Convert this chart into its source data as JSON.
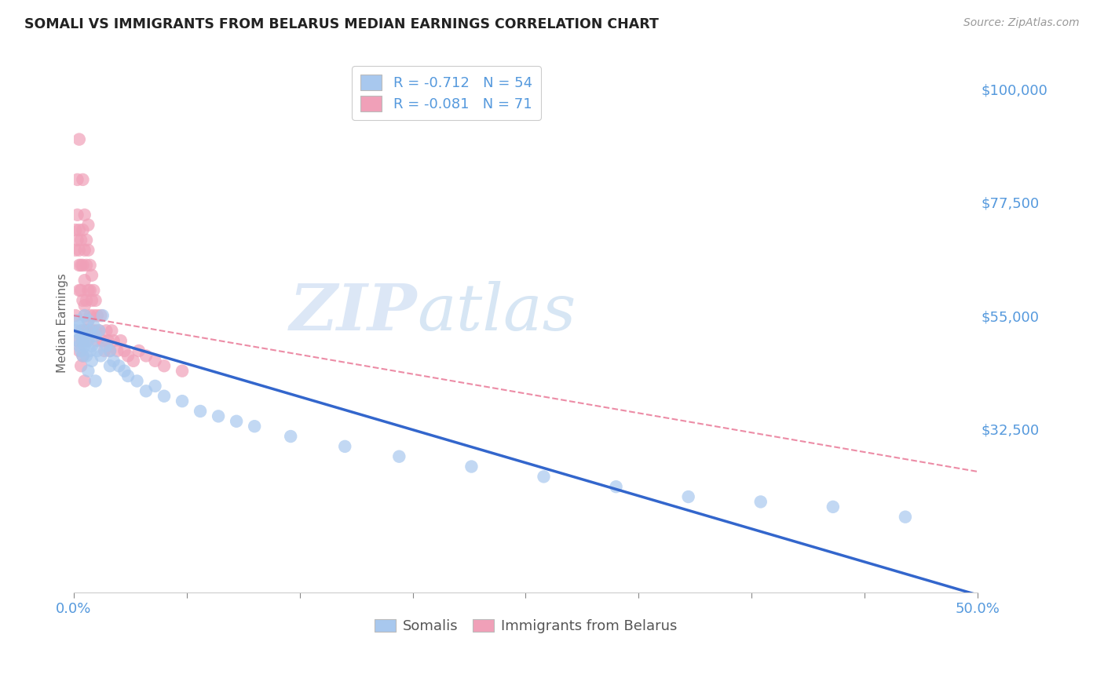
{
  "title": "SOMALI VS IMMIGRANTS FROM BELARUS MEDIAN EARNINGS CORRELATION CHART",
  "source": "Source: ZipAtlas.com",
  "ylabel": "Median Earnings",
  "yticks_labels": [
    "$100,000",
    "$77,500",
    "$55,000",
    "$32,500"
  ],
  "yticks_values": [
    100000,
    77500,
    55000,
    32500
  ],
  "ymin": 0,
  "ymax": 107000,
  "xmin": 0.0,
  "xmax": 0.5,
  "watermark_zip": "ZIP",
  "watermark_atlas": "atlas",
  "legend_blue_r": "-0.712",
  "legend_blue_n": "54",
  "legend_pink_r": "-0.081",
  "legend_pink_n": "71",
  "legend_label_blue": "Somalis",
  "legend_label_pink": "Immigrants from Belarus",
  "blue_color": "#A8C8EE",
  "pink_color": "#F0A0B8",
  "blue_line_color": "#3366CC",
  "pink_line_color": "#E87090",
  "background_color": "#FFFFFF",
  "grid_color": "#DDDDDD",
  "title_color": "#222222",
  "axis_tick_color": "#888888",
  "right_tick_color": "#5599DD",
  "source_color": "#999999",
  "somali_x": [
    0.001,
    0.002,
    0.002,
    0.003,
    0.003,
    0.004,
    0.004,
    0.005,
    0.005,
    0.006,
    0.006,
    0.007,
    0.007,
    0.008,
    0.008,
    0.009,
    0.009,
    0.01,
    0.01,
    0.011,
    0.012,
    0.013,
    0.014,
    0.015,
    0.016,
    0.018,
    0.02,
    0.022,
    0.025,
    0.028,
    0.03,
    0.035,
    0.04,
    0.045,
    0.05,
    0.06,
    0.07,
    0.08,
    0.09,
    0.1,
    0.12,
    0.15,
    0.18,
    0.22,
    0.26,
    0.3,
    0.34,
    0.38,
    0.42,
    0.46,
    0.005,
    0.008,
    0.012,
    0.02
  ],
  "somali_y": [
    52000,
    50000,
    54000,
    49000,
    53000,
    51000,
    48000,
    52000,
    50000,
    49000,
    55000,
    51000,
    47000,
    50000,
    54000,
    48000,
    52000,
    49000,
    46000,
    53000,
    51000,
    48000,
    52000,
    47000,
    55000,
    49000,
    48000,
    46000,
    45000,
    44000,
    43000,
    42000,
    40000,
    41000,
    39000,
    38000,
    36000,
    35000,
    34000,
    33000,
    31000,
    29000,
    27000,
    25000,
    23000,
    21000,
    19000,
    18000,
    17000,
    15000,
    47000,
    44000,
    42000,
    45000
  ],
  "belarus_x": [
    0.001,
    0.001,
    0.002,
    0.002,
    0.002,
    0.003,
    0.003,
    0.003,
    0.003,
    0.004,
    0.004,
    0.004,
    0.005,
    0.005,
    0.005,
    0.005,
    0.006,
    0.006,
    0.006,
    0.006,
    0.006,
    0.007,
    0.007,
    0.007,
    0.007,
    0.008,
    0.008,
    0.008,
    0.008,
    0.009,
    0.009,
    0.009,
    0.01,
    0.01,
    0.01,
    0.011,
    0.011,
    0.012,
    0.012,
    0.013,
    0.013,
    0.014,
    0.015,
    0.016,
    0.017,
    0.018,
    0.019,
    0.02,
    0.021,
    0.022,
    0.024,
    0.026,
    0.028,
    0.03,
    0.033,
    0.036,
    0.04,
    0.045,
    0.05,
    0.06,
    0.001,
    0.002,
    0.003,
    0.004,
    0.005,
    0.006,
    0.007,
    0.003,
    0.004,
    0.005,
    0.006
  ],
  "belarus_y": [
    72000,
    68000,
    82000,
    75000,
    70000,
    65000,
    72000,
    68000,
    60000,
    70000,
    65000,
    60000,
    82000,
    72000,
    65000,
    58000,
    75000,
    68000,
    62000,
    57000,
    52000,
    70000,
    65000,
    58000,
    52000,
    73000,
    68000,
    60000,
    54000,
    65000,
    60000,
    55000,
    63000,
    58000,
    52000,
    60000,
    55000,
    58000,
    52000,
    55000,
    50000,
    52000,
    55000,
    50000,
    48000,
    52000,
    50000,
    48000,
    52000,
    50000,
    48000,
    50000,
    48000,
    47000,
    46000,
    48000,
    47000,
    46000,
    45000,
    44000,
    55000,
    50000,
    48000,
    52000,
    47000,
    55000,
    50000,
    90000,
    45000,
    50000,
    42000
  ]
}
